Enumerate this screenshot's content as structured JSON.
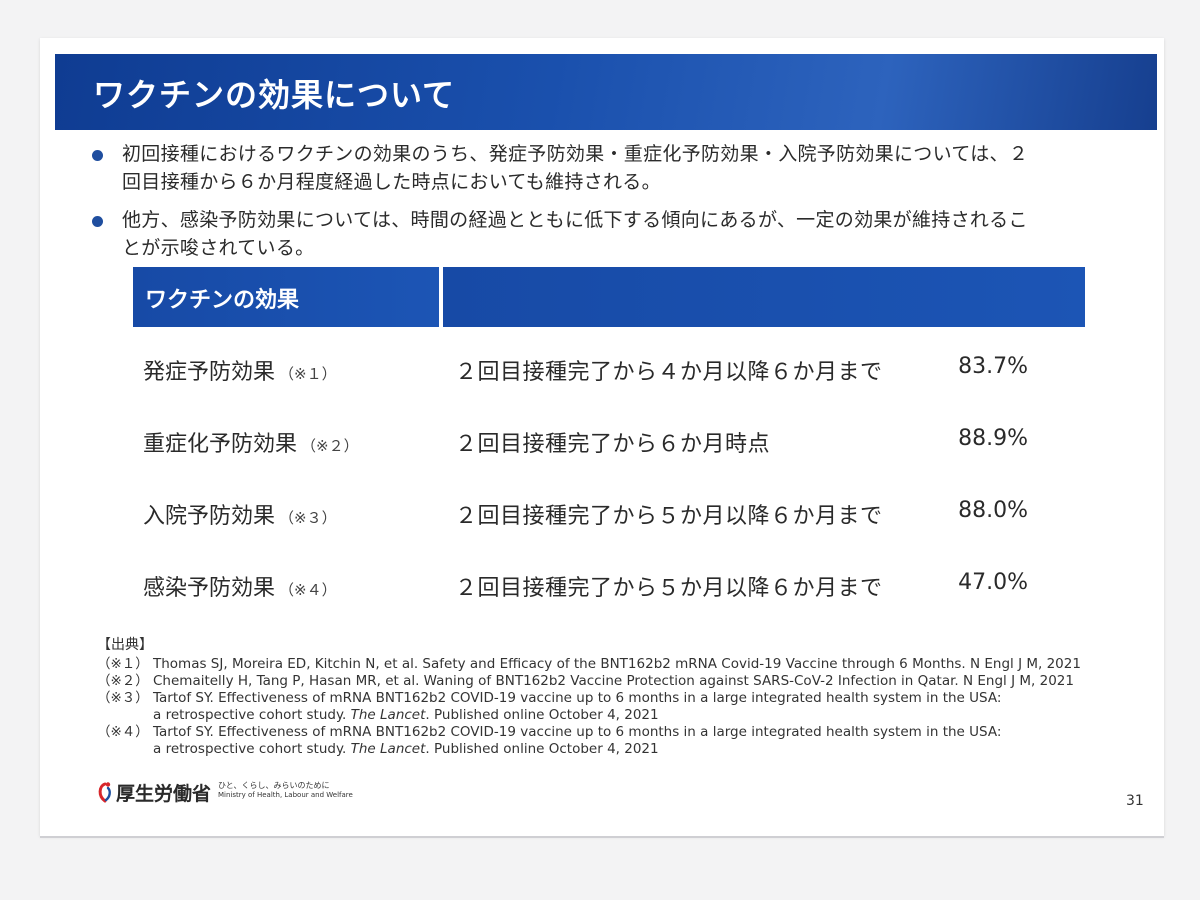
{
  "title": "ワクチンの効果について",
  "bullets": [
    {
      "lines": [
        "初回接種におけるワクチンの効果のうち、発症予防効果・重症化予防効果・入院予防効果については、２",
        "回目接種から６か月程度経過した時点においても維持される。"
      ]
    },
    {
      "lines": [
        "他方、感染予防効果については、時間の経過とともに低下する傾向にあるが、一定の効果が維持されるこ",
        "とが示唆されている。"
      ]
    }
  ],
  "table": {
    "header_label": "ワクチンの効果",
    "rows": [
      {
        "label": "発症予防効果",
        "note": "（※１）",
        "description": "２回目接種完了から４か月以降６か月まで",
        "value": "83.7%"
      },
      {
        "label": "重症化予防効果",
        "note": "（※２）",
        "description": "２回目接種完了から６か月時点",
        "value": "88.9%"
      },
      {
        "label": "入院予防効果",
        "note": "（※３）",
        "description": "２回目接種完了から５か月以降６か月まで",
        "value": "88.0%"
      },
      {
        "label": "感染予防効果",
        "note": "（※４）",
        "description": "２回目接種完了から５か月以降６か月まで",
        "value": "47.0%"
      }
    ]
  },
  "sources": {
    "heading": "【出典】",
    "refs": [
      {
        "mark": "（※１）",
        "line1": "Thomas SJ, Moreira ED, Kitchin N, et al. Safety and Efficacy of the BNT162b2 mRNA Covid-19 Vaccine through 6 Months. N Engl J M, 2021"
      },
      {
        "mark": "（※２）",
        "line1": "Chemaitelly H, Tang P, Hasan MR, et al. Waning of BNT162b2 Vaccine Protection against SARS-CoV-2 Infection in Qatar. N Engl J M, 2021"
      },
      {
        "mark": "（※３）",
        "line1": "Tartof SY. Effectiveness of mRNA BNT162b2 COVID-19 vaccine up to 6 months in a large integrated health system in the USA:",
        "line2_pre": "a retrospective cohort study. ",
        "line2_em": "The Lancet",
        "line2_post": ". Published online October 4, 2021"
      },
      {
        "mark": "（※４）",
        "line1": "Tartof SY. Effectiveness of mRNA BNT162b2 COVID-19 vaccine up to 6 months in a large integrated health system in the USA:",
        "line2_pre": "a retrospective cohort study. ",
        "line2_em": "The Lancet",
        "line2_post": ". Published online October 4, 2021"
      }
    ]
  },
  "footer": {
    "logo_name": "厚生労働省",
    "logo_tagline": "ひと、くらし、みらいのために",
    "logo_english": "Ministry of Health, Labour and Welfare",
    "logo_icon": "mhlw-logo-icon",
    "page_number": "31"
  },
  "colors": {
    "accent": "#1a50ad",
    "bullet": "#1f4e9f",
    "logo_red": "#d7262b",
    "logo_blue": "#1c4fa0"
  }
}
